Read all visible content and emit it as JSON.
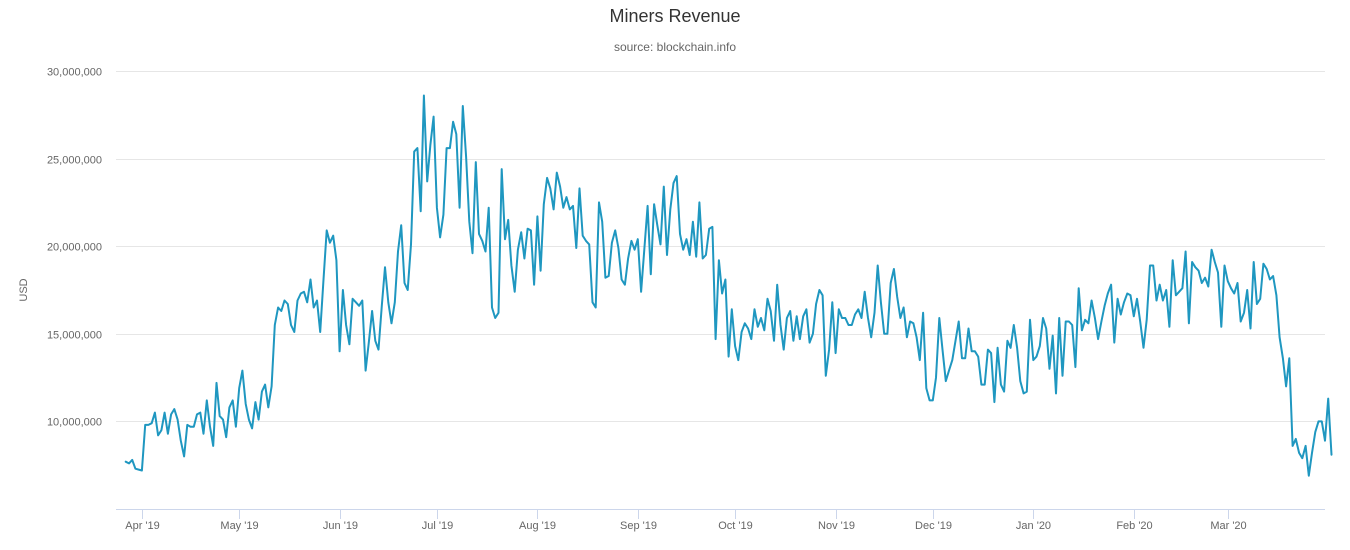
{
  "chart_data": {
    "type": "line",
    "title": "Miners Revenue",
    "subtitle": "source: blockchain.info",
    "ylabel": "USD",
    "xlabel": "",
    "ylim": [
      5000000,
      30000000
    ],
    "y_ticks": [
      10000000,
      15000000,
      20000000,
      25000000,
      30000000
    ],
    "y_tick_labels": [
      "10,000,000",
      "15,000,000",
      "20,000,000",
      "25,000,000",
      "30,000,000"
    ],
    "x_range": [
      "2019-03-24",
      "2020-03-31"
    ],
    "x_ticks": [
      {
        "label": "Apr '19",
        "date": "2019-04-01"
      },
      {
        "label": "May '19",
        "date": "2019-05-01"
      },
      {
        "label": "Jun '19",
        "date": "2019-06-01"
      },
      {
        "label": "Jul '19",
        "date": "2019-07-01"
      },
      {
        "label": "Aug '19",
        "date": "2019-08-01"
      },
      {
        "label": "Sep '19",
        "date": "2019-09-01"
      },
      {
        "label": "Oct '19",
        "date": "2019-10-01"
      },
      {
        "label": "Nov '19",
        "date": "2019-11-01"
      },
      {
        "label": "Dec '19",
        "date": "2019-12-01"
      },
      {
        "label": "Jan '20",
        "date": "2020-01-01"
      },
      {
        "label": "Feb '20",
        "date": "2020-02-01"
      },
      {
        "label": "Mar '20",
        "date": "2020-03-01"
      }
    ],
    "grid": true,
    "legend": "none",
    "series": [
      {
        "name": "Miners Revenue",
        "color": "#1f97c0",
        "x_start": "2019-03-27",
        "step_days": 1,
        "values": [
          7.7,
          7.6,
          7.8,
          7.3,
          7.25,
          7.2,
          9.8,
          9.8,
          9.9,
          10.5,
          9.2,
          9.5,
          10.5,
          9.3,
          10.4,
          10.7,
          10.1,
          8.9,
          8.0,
          9.8,
          9.7,
          9.7,
          10.4,
          10.5,
          9.3,
          11.2,
          9.7,
          8.6,
          12.2,
          10.3,
          10.1,
          9.1,
          10.8,
          11.2,
          9.7,
          11.9,
          12.9,
          11.0,
          10.1,
          9.6,
          11.1,
          10.1,
          11.7,
          12.1,
          10.8,
          12.0,
          15.5,
          16.5,
          16.3,
          16.9,
          16.7,
          15.5,
          15.1,
          16.9,
          17.3,
          17.4,
          16.8,
          18.1,
          16.5,
          16.9,
          15.1,
          18.0,
          20.9,
          20.2,
          20.6,
          19.2,
          14.0,
          17.5,
          15.5,
          14.4,
          17.0,
          16.8,
          16.6,
          16.9,
          12.9,
          14.5,
          16.3,
          14.6,
          14.1,
          16.6,
          18.8,
          16.8,
          15.6,
          16.8,
          19.7,
          21.2,
          17.9,
          17.5,
          20.1,
          25.4,
          25.6,
          22.0,
          28.6,
          23.7,
          25.8,
          27.4,
          22.2,
          20.5,
          21.8,
          25.6,
          25.6,
          27.1,
          26.4,
          22.2,
          28.0,
          25.1,
          21.4,
          19.6,
          24.8,
          20.7,
          20.3,
          19.7,
          22.2,
          16.5,
          15.9,
          16.2,
          24.4,
          20.4,
          21.5,
          18.9,
          17.4,
          19.8,
          20.8,
          19.3,
          21.0,
          20.9,
          17.8,
          21.7,
          18.6,
          22.4,
          23.9,
          23.3,
          22.1,
          24.2,
          23.4,
          22.2,
          22.8,
          22.1,
          22.3,
          19.9,
          23.3,
          20.6,
          20.3,
          20.1,
          16.8,
          16.5,
          22.5,
          21.4,
          18.2,
          18.3,
          20.2,
          20.9,
          19.9,
          18.1,
          17.8,
          19.3,
          20.3,
          19.8,
          20.4,
          17.4,
          19.8,
          22.3,
          18.4,
          22.4,
          21.2,
          20.1,
          23.4,
          19.5,
          22.1,
          23.6,
          24.0,
          20.7,
          19.8,
          20.4,
          19.5,
          21.4,
          19.4,
          22.5,
          19.3,
          19.5,
          21.0,
          21.1,
          14.7,
          19.2,
          17.3,
          18.1,
          13.7,
          16.4,
          14.3,
          13.5,
          15.1,
          15.6,
          15.3,
          14.7,
          16.4,
          15.4,
          15.9,
          15.2,
          17.0,
          16.3,
          14.6,
          17.8,
          15.5,
          14.1,
          15.9,
          16.3,
          14.6,
          16.0,
          14.7,
          16.0,
          16.4,
          14.5,
          15.0,
          16.7,
          17.5,
          17.2,
          12.6,
          14.1,
          16.8,
          13.9,
          16.4,
          15.9,
          15.9,
          15.5,
          15.5,
          16.1,
          16.4,
          15.9,
          17.4,
          15.9,
          14.8,
          16.2,
          18.9,
          16.8,
          15.0,
          15.0,
          17.9,
          18.7,
          17.1,
          15.9,
          16.5,
          14.8,
          15.7,
          15.6,
          14.8,
          13.5,
          16.2,
          11.9,
          11.2,
          11.2,
          12.5,
          15.9,
          14.1,
          12.3,
          12.9,
          13.5,
          14.6,
          15.7,
          13.6,
          13.6,
          15.3,
          14.0,
          14.0,
          13.7,
          12.1,
          12.1,
          14.1,
          13.9,
          11.1,
          14.2,
          12.1,
          11.7,
          14.6,
          14.2,
          15.5,
          14.2,
          12.3,
          11.6,
          11.7,
          15.8,
          13.5,
          13.7,
          14.3,
          15.9,
          15.3,
          13.0,
          14.9,
          11.6,
          15.9,
          12.6,
          15.7,
          15.7,
          15.5,
          13.1,
          17.6,
          15.2,
          15.8,
          15.6,
          16.9,
          15.9,
          14.7,
          15.7,
          16.6,
          17.3,
          17.8,
          14.5,
          17.0,
          16.1,
          16.8,
          17.3,
          17.2,
          16.0,
          17.0,
          15.7,
          14.2,
          15.8,
          18.9,
          18.9,
          16.9,
          17.8,
          16.9,
          17.5,
          15.4,
          19.2,
          17.2,
          17.4,
          17.6,
          19.7,
          15.6,
          19.1,
          18.8,
          18.6,
          17.9,
          18.2,
          17.7,
          19.8,
          19.1,
          18.5,
          15.4,
          18.9,
          18.0,
          17.6,
          17.3,
          17.9,
          15.7,
          16.2,
          17.5,
          15.3,
          19.1,
          16.7,
          17.0,
          19.0,
          18.7,
          18.1,
          18.3,
          17.2,
          14.8,
          13.6,
          12.0,
          13.6,
          8.6,
          9.0,
          8.2,
          7.9,
          8.6,
          6.9,
          8.2,
          9.4,
          10.0,
          10.0,
          8.9,
          11.3,
          8.1
        ]
      }
    ]
  }
}
